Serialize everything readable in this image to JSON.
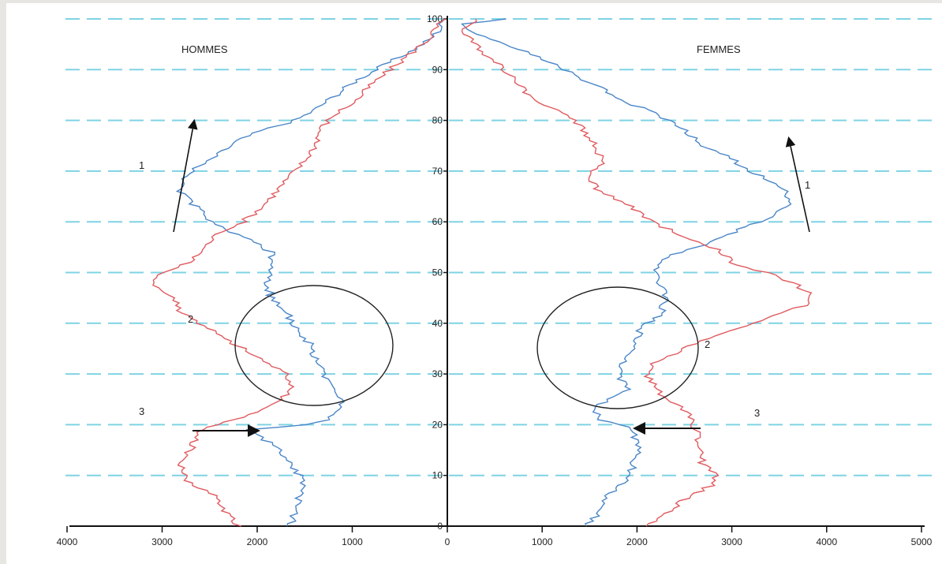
{
  "chart_data": {
    "type": "line",
    "title": "",
    "layout": "back-to-back population pyramid",
    "panels": [
      {
        "name": "HOMMES",
        "side": "left"
      },
      {
        "name": "FEMMES",
        "side": "right"
      }
    ],
    "y_axis": {
      "label": "",
      "range": [
        0,
        100
      ],
      "ticks": [
        0,
        10,
        20,
        30,
        40,
        50,
        60,
        70,
        80,
        90,
        100
      ]
    },
    "x_axis_left": {
      "label": "",
      "range": [
        0,
        4000
      ],
      "ticks": [
        4000,
        3000,
        2000,
        1000,
        0
      ],
      "direction": "reversed"
    },
    "x_axis_right": {
      "label": "",
      "range": [
        0,
        5000
      ],
      "ticks": [
        0,
        1000,
        2000,
        3000,
        4000,
        5000
      ]
    },
    "gridlines": {
      "horizontal": true,
      "style": "dashed",
      "color": "#7fd3e3"
    },
    "series": [
      {
        "color": "#4a86c8",
        "hommes": [
          [
            0,
            1650
          ],
          [
            3,
            1600
          ],
          [
            6,
            1550
          ],
          [
            9,
            1520
          ],
          [
            12,
            1640
          ],
          [
            15,
            1780
          ],
          [
            18,
            1980
          ],
          [
            19,
            2080
          ],
          [
            20,
            1500
          ],
          [
            21,
            1250
          ],
          [
            24,
            1120
          ],
          [
            27,
            1150
          ],
          [
            30,
            1300
          ],
          [
            33,
            1380
          ],
          [
            36,
            1450
          ],
          [
            39,
            1600
          ],
          [
            42,
            1680
          ],
          [
            45,
            1850
          ],
          [
            48,
            1900
          ],
          [
            51,
            1880
          ],
          [
            54,
            1850
          ],
          [
            57,
            2150
          ],
          [
            60,
            2480
          ],
          [
            62,
            2580
          ],
          [
            64,
            2720
          ],
          [
            66,
            2800
          ],
          [
            68,
            2780
          ],
          [
            70,
            2700
          ],
          [
            72,
            2500
          ],
          [
            74,
            2350
          ],
          [
            76,
            2200
          ],
          [
            78,
            1950
          ],
          [
            80,
            1600
          ],
          [
            82,
            1400
          ],
          [
            84,
            1250
          ],
          [
            86,
            1100
          ],
          [
            88,
            950
          ],
          [
            90,
            750
          ],
          [
            92,
            550
          ],
          [
            94,
            350
          ],
          [
            96,
            180
          ],
          [
            98,
            80
          ],
          [
            100,
            40
          ]
        ],
        "femmes": [
          [
            0,
            1480
          ],
          [
            3,
            1600
          ],
          [
            6,
            1700
          ],
          [
            9,
            1900
          ],
          [
            12,
            1960
          ],
          [
            15,
            2000
          ],
          [
            18,
            1980
          ],
          [
            19,
            1960
          ],
          [
            20,
            1850
          ],
          [
            21,
            1620
          ],
          [
            23,
            1520
          ],
          [
            25,
            1720
          ],
          [
            27,
            1900
          ],
          [
            30,
            1800
          ],
          [
            33,
            1880
          ],
          [
            36,
            1960
          ],
          [
            39,
            2050
          ],
          [
            42,
            2250
          ],
          [
            45,
            2300
          ],
          [
            48,
            2250
          ],
          [
            51,
            2200
          ],
          [
            53,
            2300
          ],
          [
            55,
            2650
          ],
          [
            57,
            2900
          ],
          [
            59,
            3150
          ],
          [
            61,
            3400
          ],
          [
            63,
            3600
          ],
          [
            65,
            3600
          ],
          [
            67,
            3520
          ],
          [
            69,
            3300
          ],
          [
            71,
            3100
          ],
          [
            73,
            2950
          ],
          [
            75,
            2700
          ],
          [
            78,
            2500
          ],
          [
            80,
            2350
          ],
          [
            82,
            2100
          ],
          [
            84,
            1850
          ],
          [
            86,
            1650
          ],
          [
            88,
            1420
          ],
          [
            90,
            1250
          ],
          [
            92,
            1000
          ],
          [
            94,
            750
          ],
          [
            96,
            450
          ],
          [
            98,
            200
          ],
          [
            99,
            160
          ],
          [
            100,
            620
          ]
        ]
      },
      {
        "color": "#e05a5e",
        "hommes": [
          [
            0,
            2200
          ],
          [
            3,
            2350
          ],
          [
            6,
            2450
          ],
          [
            9,
            2750
          ],
          [
            12,
            2820
          ],
          [
            15,
            2700
          ],
          [
            18,
            2650
          ],
          [
            19,
            2580
          ],
          [
            20,
            2400
          ],
          [
            21,
            2250
          ],
          [
            23,
            1950
          ],
          [
            25,
            1750
          ],
          [
            27,
            1650
          ],
          [
            30,
            1700
          ],
          [
            33,
            1950
          ],
          [
            36,
            2250
          ],
          [
            39,
            2500
          ],
          [
            42,
            2800
          ],
          [
            45,
            2900
          ],
          [
            48,
            3100
          ],
          [
            50,
            3000
          ],
          [
            52,
            2700
          ],
          [
            54,
            2600
          ],
          [
            56,
            2500
          ],
          [
            58,
            2400
          ],
          [
            60,
            2150
          ],
          [
            63,
            1950
          ],
          [
            66,
            1800
          ],
          [
            69,
            1650
          ],
          [
            72,
            1500
          ],
          [
            75,
            1400
          ],
          [
            78,
            1350
          ],
          [
            81,
            1200
          ],
          [
            84,
            950
          ],
          [
            87,
            800
          ],
          [
            90,
            600
          ],
          [
            93,
            400
          ],
          [
            96,
            200
          ],
          [
            99,
            80
          ],
          [
            100,
            20
          ]
        ],
        "femmes": [
          [
            0,
            2100
          ],
          [
            3,
            2350
          ],
          [
            6,
            2550
          ],
          [
            8,
            2780
          ],
          [
            10,
            2850
          ],
          [
            12,
            2700
          ],
          [
            15,
            2650
          ],
          [
            18,
            2650
          ],
          [
            20,
            2600
          ],
          [
            23,
            2500
          ],
          [
            25,
            2300
          ],
          [
            27,
            2200
          ],
          [
            30,
            2100
          ],
          [
            32,
            2150
          ],
          [
            35,
            2500
          ],
          [
            38,
            2900
          ],
          [
            41,
            3350
          ],
          [
            44,
            3850
          ],
          [
            46,
            3800
          ],
          [
            48,
            3650
          ],
          [
            50,
            3350
          ],
          [
            52,
            3000
          ],
          [
            54,
            2900
          ],
          [
            56,
            2650
          ],
          [
            58,
            2400
          ],
          [
            60,
            2150
          ],
          [
            63,
            1950
          ],
          [
            66,
            1600
          ],
          [
            69,
            1500
          ],
          [
            72,
            1650
          ],
          [
            75,
            1550
          ],
          [
            78,
            1450
          ],
          [
            81,
            1250
          ],
          [
            84,
            900
          ],
          [
            87,
            750
          ],
          [
            90,
            600
          ],
          [
            93,
            400
          ],
          [
            96,
            250
          ],
          [
            98,
            120
          ],
          [
            99,
            260
          ],
          [
            100,
            300
          ]
        ]
      }
    ],
    "annotations": {
      "labels": [
        "1",
        "2",
        "3"
      ],
      "shapes": [
        "up arrow 1 (both sides)",
        "ellipse 2 around ages ~25-47",
        "arrow 3 at age ~19-20"
      ]
    }
  }
}
